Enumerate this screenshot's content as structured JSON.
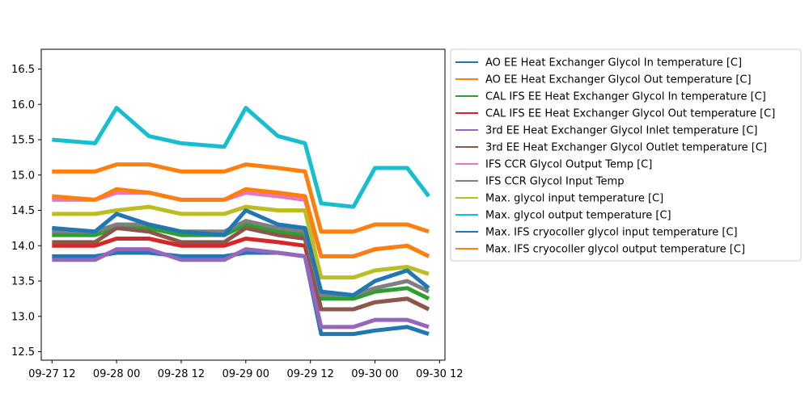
{
  "chart_data": {
    "type": "line",
    "title": "",
    "xlabel": "",
    "ylabel": "",
    "x_ticks": [
      "09-27 12",
      "09-28 00",
      "09-28 12",
      "09-29 00",
      "09-29 12",
      "09-30 00",
      "09-30 12"
    ],
    "y_ticks": [
      "12.5",
      "13.0",
      "13.5",
      "14.0",
      "14.5",
      "15.0",
      "15.5",
      "16.0",
      "16.5"
    ],
    "xlim": [
      "2023-09-27T10:00",
      "2023-09-30T13:00"
    ],
    "ylim": [
      12.38,
      16.78
    ],
    "grid": false,
    "legend_position": "outside right",
    "x": [
      "2023-09-27T12:00",
      "2023-09-27T20:00",
      "2023-09-28T00:00",
      "2023-09-28T06:00",
      "2023-09-28T12:00",
      "2023-09-28T20:00",
      "2023-09-29T00:00",
      "2023-09-29T06:00",
      "2023-09-29T11:00",
      "2023-09-29T14:00",
      "2023-09-29T20:00",
      "2023-09-30T00:00",
      "2023-09-30T06:00",
      "2023-09-30T10:00"
    ],
    "series": [
      {
        "name": "AO EE Heat Exchanger Glycol In temperature [C]",
        "color": "#1f77b4",
        "values": [
          13.85,
          13.85,
          13.9,
          13.9,
          13.85,
          13.85,
          13.9,
          13.9,
          13.85,
          12.75,
          12.75,
          12.8,
          12.85,
          12.75
        ]
      },
      {
        "name": "AO EE Heat Exchanger Glycol Out temperature [C]",
        "color": "#ff7f0e",
        "values": [
          15.05,
          15.05,
          15.15,
          15.15,
          15.05,
          15.05,
          15.15,
          15.1,
          15.05,
          14.2,
          14.2,
          14.3,
          14.3,
          14.2
        ]
      },
      {
        "name": "CAL IFS EE Heat Exchanger Glycol In temperature [C]",
        "color": "#2ca02c",
        "values": [
          14.15,
          14.15,
          14.25,
          14.25,
          14.15,
          14.15,
          14.3,
          14.2,
          14.15,
          13.25,
          13.25,
          13.35,
          13.4,
          13.25
        ]
      },
      {
        "name": "CAL IFS EE Heat Exchanger Glycol Out temperature [C]",
        "color": "#d62728",
        "values": [
          14.0,
          14.0,
          14.1,
          14.1,
          14.0,
          14.0,
          14.1,
          14.05,
          14.0,
          13.1,
          13.1,
          13.2,
          13.25,
          13.1
        ]
      },
      {
        "name": "3rd EE Heat Exchanger Glycol Inlet temperature [C]",
        "color": "#9467bd",
        "values": [
          13.8,
          13.8,
          13.95,
          13.95,
          13.8,
          13.8,
          13.95,
          13.9,
          13.85,
          12.85,
          12.85,
          12.95,
          12.95,
          12.85
        ]
      },
      {
        "name": "3rd EE Heat Exchanger Glycol Outlet temperature [C]",
        "color": "#8c564b",
        "values": [
          14.05,
          14.05,
          14.25,
          14.2,
          14.05,
          14.05,
          14.25,
          14.15,
          14.1,
          13.1,
          13.1,
          13.2,
          13.25,
          13.1
        ]
      },
      {
        "name": "IFS CCR Glycol Output Temp [C]",
        "color": "#e377c2",
        "values": [
          14.65,
          14.65,
          14.75,
          14.75,
          14.65,
          14.65,
          14.75,
          14.7,
          14.65,
          13.85,
          13.85,
          13.95,
          14.0,
          13.85
        ]
      },
      {
        "name": "IFS CCR Glycol Input Temp",
        "color": "#7f7f7f",
        "values": [
          14.2,
          14.2,
          14.3,
          14.3,
          14.2,
          14.2,
          14.35,
          14.25,
          14.2,
          13.3,
          13.3,
          13.4,
          13.5,
          13.35
        ]
      },
      {
        "name": "Max. glycol input temperature [C]",
        "color": "#bcbd22",
        "values": [
          14.45,
          14.45,
          14.5,
          14.55,
          14.45,
          14.45,
          14.55,
          14.5,
          14.5,
          13.55,
          13.55,
          13.65,
          13.7,
          13.6
        ]
      },
      {
        "name": "Max. glycol output temperature [C]",
        "color": "#17becf",
        "values": [
          15.5,
          15.45,
          15.95,
          15.55,
          15.45,
          15.4,
          15.95,
          15.55,
          15.45,
          14.6,
          14.55,
          15.1,
          15.1,
          14.7
        ]
      },
      {
        "name": "Max. IFS cryocoller glycol input temperature [C]",
        "color": "#1f77b4",
        "values": [
          14.25,
          14.2,
          14.45,
          14.3,
          14.2,
          14.15,
          14.5,
          14.3,
          14.25,
          13.35,
          13.3,
          13.5,
          13.65,
          13.4
        ]
      },
      {
        "name": "Max. IFS cryocoller glycol output temperature [C]",
        "color": "#ff7f0e",
        "values": [
          14.7,
          14.65,
          14.8,
          14.75,
          14.65,
          14.65,
          14.8,
          14.75,
          14.7,
          13.85,
          13.85,
          13.95,
          14.0,
          13.85
        ]
      }
    ]
  }
}
